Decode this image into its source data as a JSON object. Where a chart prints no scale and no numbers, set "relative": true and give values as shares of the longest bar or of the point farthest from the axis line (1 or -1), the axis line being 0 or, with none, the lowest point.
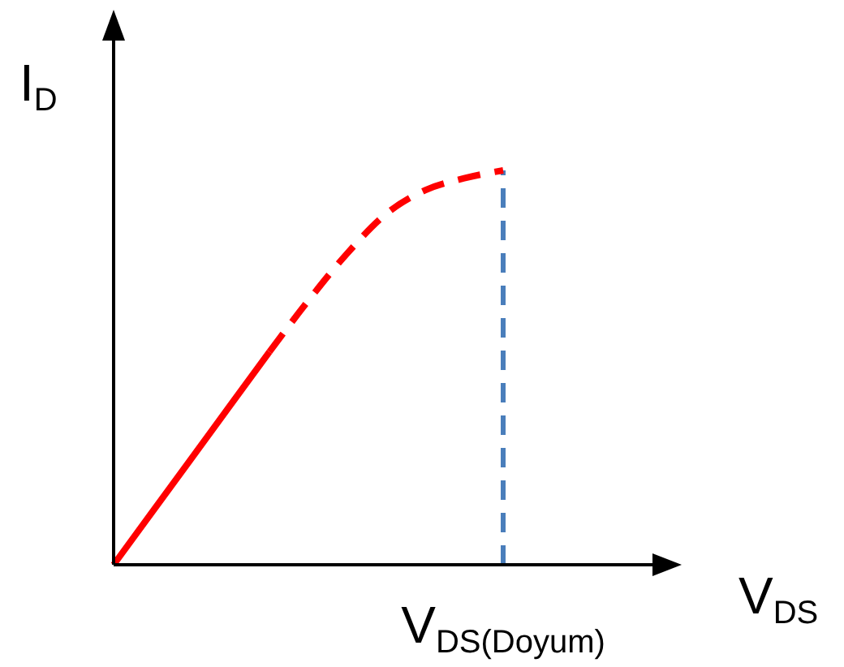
{
  "chart_data": {
    "type": "line",
    "relative": true,
    "xlabel": "V$_{DS}$",
    "ylabel": "I$_{D}$",
    "categories": [
      null,
      null,
      null,
      null,
      null,
      null,
      null,
      null,
      null,
      null,
      null
    ],
    "series": [
      {
        "color": "#ff0000",
        "line_style": "solid",
        "values": [
          0,
          0.135,
          0.27,
          0.405,
          0.54,
          null,
          null,
          null,
          null,
          null,
          null
        ]
      },
      {
        "color": "#ff0000",
        "line_style": "dashed",
        "values": [
          null,
          null,
          null,
          null,
          0.54,
          0.67,
          0.79,
          0.89,
          0.95,
          0.98,
          1.0
        ]
      }
    ],
    "annotations": [
      "V$_{DS(Doyum)}$"
    ],
    "marker": "none"
  }
}
